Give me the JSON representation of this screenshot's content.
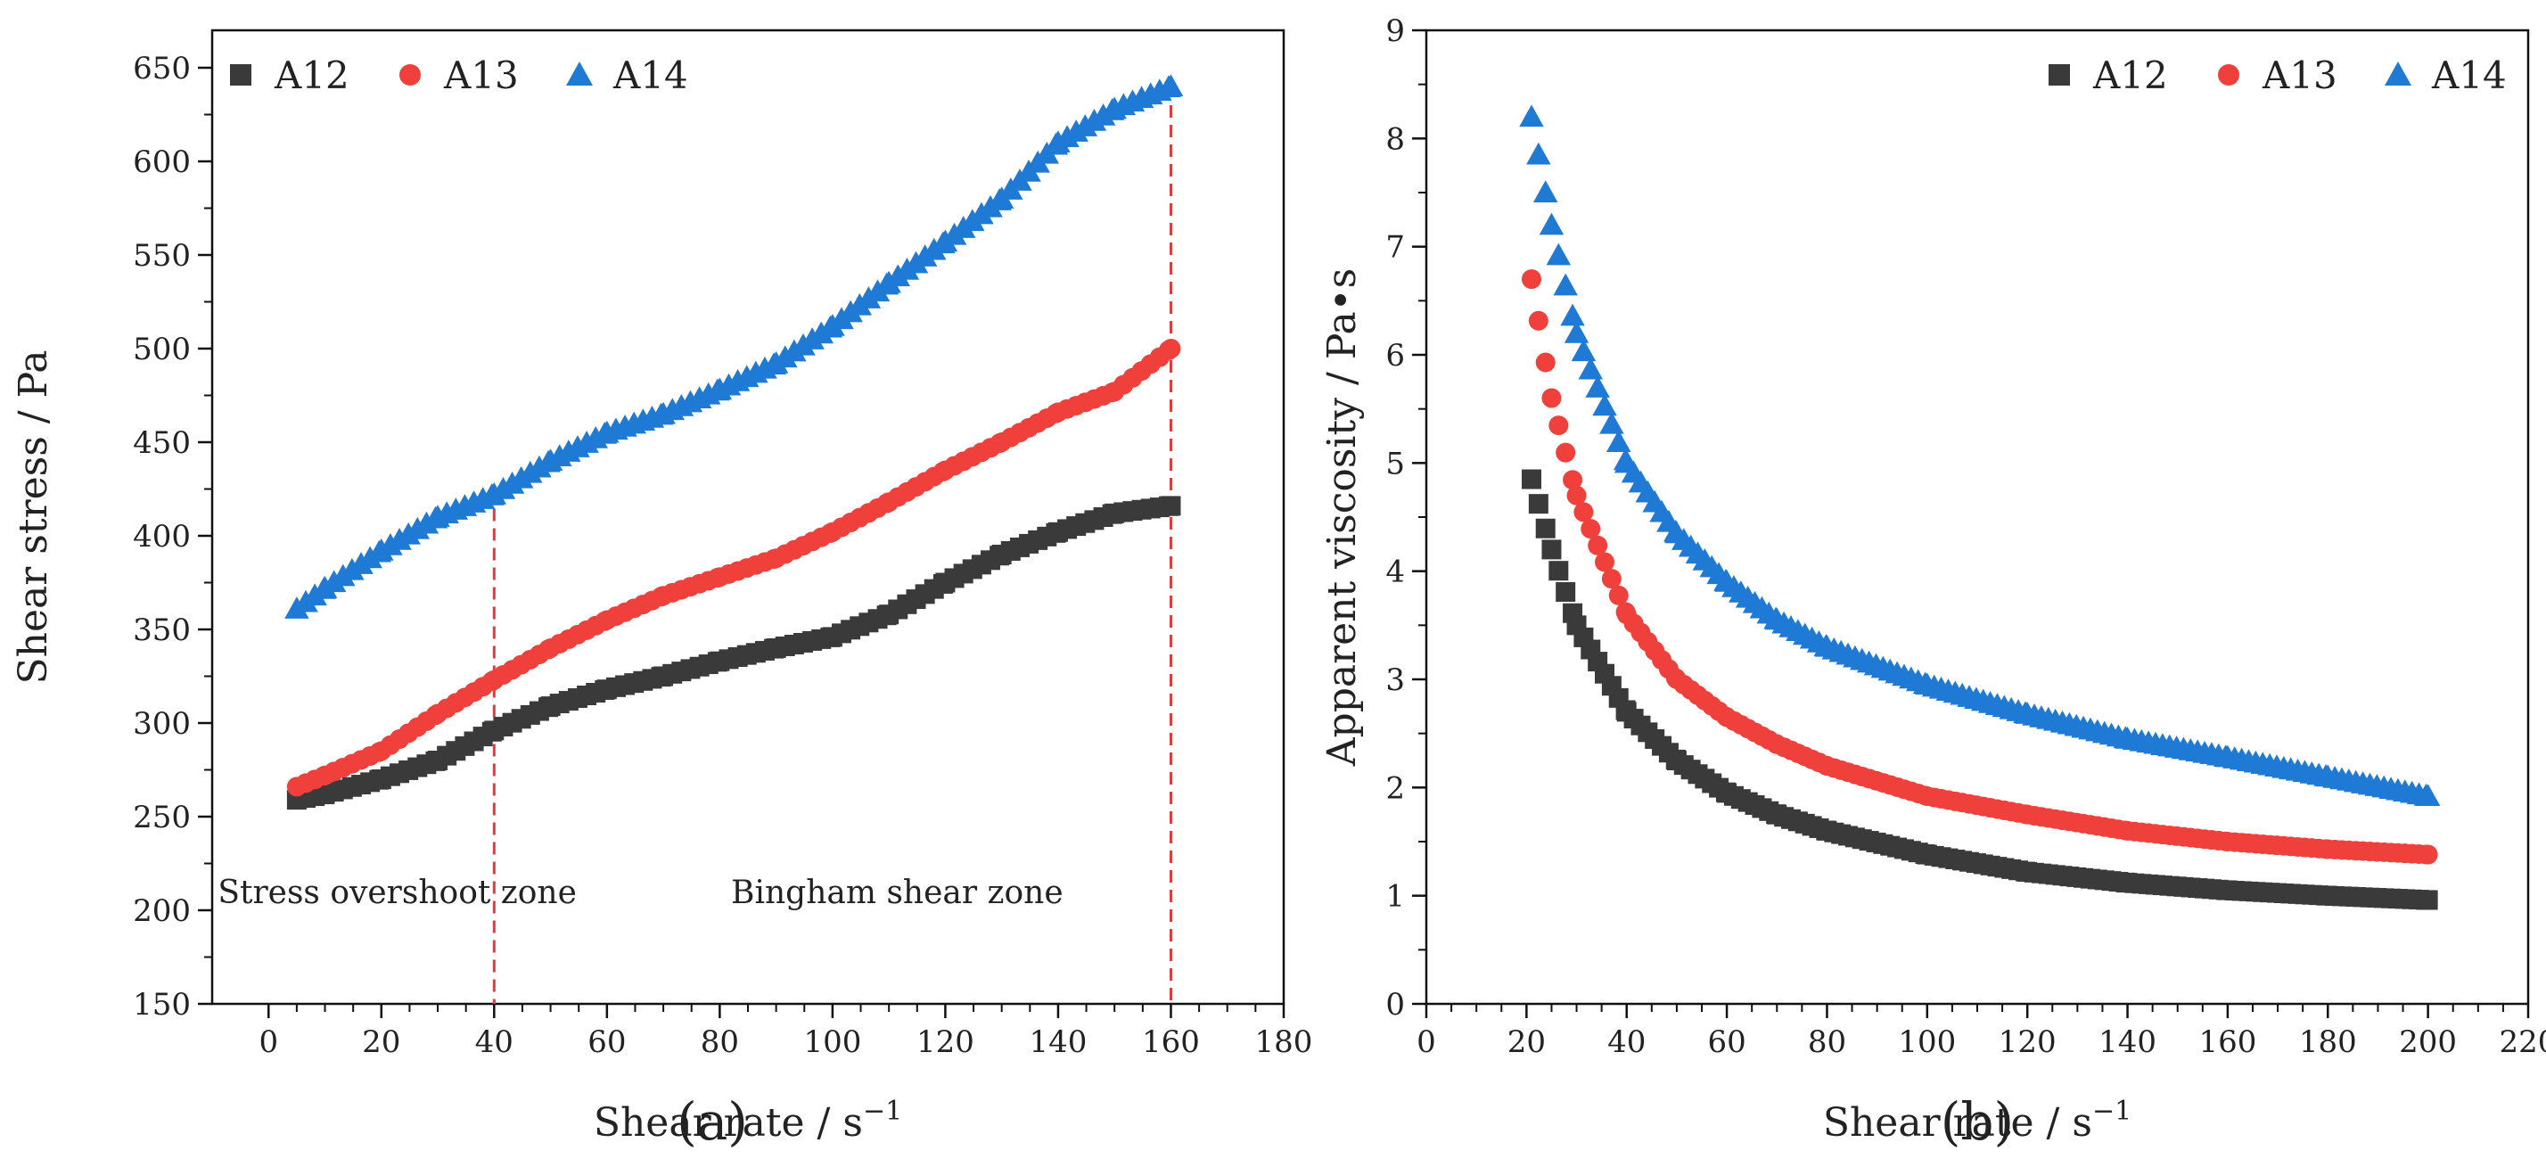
{
  "chart_data": [
    {
      "type": "scatter",
      "panel_label": "(a)",
      "xlabel": "Shear rate / s",
      "xlabel_sup": "−1",
      "ylabel": "Shear stress / Pa",
      "xlim": [
        -10,
        180
      ],
      "ylim": [
        150,
        670
      ],
      "xticks": [
        0,
        20,
        40,
        60,
        80,
        100,
        120,
        140,
        160,
        180
      ],
      "yticks": [
        150,
        200,
        250,
        300,
        350,
        400,
        450,
        500,
        550,
        600,
        650
      ],
      "legend_position": "top-left",
      "series": [
        {
          "name": "A12",
          "marker": "square",
          "color": "#3a3a3a",
          "points": [
            [
              5,
              259
            ],
            [
              10,
              262
            ],
            [
              20,
              270
            ],
            [
              30,
              280
            ],
            [
              40,
              296
            ],
            [
              50,
              309
            ],
            [
              60,
              318
            ],
            [
              70,
              325
            ],
            [
              80,
              333
            ],
            [
              90,
              340
            ],
            [
              100,
              346
            ],
            [
              110,
              358
            ],
            [
              120,
              375
            ],
            [
              130,
              390
            ],
            [
              140,
              402
            ],
            [
              150,
              412
            ],
            [
              160,
              416
            ]
          ]
        },
        {
          "name": "A13",
          "marker": "circle",
          "color": "#f0403c",
          "points": [
            [
              5,
              266
            ],
            [
              10,
              272
            ],
            [
              20,
              285
            ],
            [
              30,
              305
            ],
            [
              40,
              323
            ],
            [
              50,
              340
            ],
            [
              60,
              355
            ],
            [
              70,
              368
            ],
            [
              80,
              378
            ],
            [
              90,
              388
            ],
            [
              100,
              402
            ],
            [
              110,
              418
            ],
            [
              120,
              435
            ],
            [
              130,
              450
            ],
            [
              140,
              466
            ],
            [
              150,
              477
            ],
            [
              160,
              500
            ]
          ]
        },
        {
          "name": "A14",
          "marker": "triangle",
          "color": "#1f7ad6",
          "points": [
            [
              5,
              361
            ],
            [
              10,
              372
            ],
            [
              20,
              392
            ],
            [
              30,
              410
            ],
            [
              40,
              422
            ],
            [
              50,
              440
            ],
            [
              60,
              455
            ],
            [
              70,
              465
            ],
            [
              80,
              478
            ],
            [
              90,
              492
            ],
            [
              100,
              512
            ],
            [
              110,
              535
            ],
            [
              120,
              557
            ],
            [
              130,
              580
            ],
            [
              140,
              610
            ],
            [
              150,
              628
            ],
            [
              160,
              640
            ]
          ]
        }
      ],
      "vlines": [
        40,
        160
      ],
      "annotations": [
        "Stress overshoot zone",
        "Bingham shear zone"
      ]
    },
    {
      "type": "scatter",
      "panel_label": "(b)",
      "xlabel": "Shear rate / s",
      "xlabel_sup": "−1",
      "ylabel": "Apparent viscosity / Pa•s",
      "xlim": [
        0,
        220
      ],
      "ylim": [
        0,
        9
      ],
      "xticks": [
        0,
        20,
        40,
        60,
        80,
        100,
        120,
        140,
        160,
        180,
        200,
        220
      ],
      "yticks": [
        0,
        1,
        2,
        3,
        4,
        5,
        6,
        7,
        8,
        9
      ],
      "legend_position": "top-right",
      "series": [
        {
          "name": "A12",
          "marker": "square",
          "color": "#3a3a3a",
          "points": [
            [
              21,
              4.85
            ],
            [
              25,
              4.2
            ],
            [
              30,
              3.5
            ],
            [
              40,
              2.7
            ],
            [
              50,
              2.25
            ],
            [
              60,
              1.95
            ],
            [
              70,
              1.75
            ],
            [
              80,
              1.6
            ],
            [
              100,
              1.38
            ],
            [
              120,
              1.22
            ],
            [
              140,
              1.12
            ],
            [
              160,
              1.05
            ],
            [
              180,
              1.0
            ],
            [
              200,
              0.96
            ]
          ]
        },
        {
          "name": "A13",
          "marker": "circle",
          "color": "#f0403c",
          "points": [
            [
              21,
              6.7
            ],
            [
              25,
              5.6
            ],
            [
              30,
              4.7
            ],
            [
              40,
              3.6
            ],
            [
              50,
              3.0
            ],
            [
              60,
              2.65
            ],
            [
              70,
              2.4
            ],
            [
              80,
              2.2
            ],
            [
              100,
              1.92
            ],
            [
              120,
              1.75
            ],
            [
              140,
              1.6
            ],
            [
              160,
              1.5
            ],
            [
              180,
              1.43
            ],
            [
              200,
              1.38
            ]
          ]
        },
        {
          "name": "A14",
          "marker": "triangle",
          "color": "#1f7ad6",
          "points": [
            [
              21,
              8.2
            ],
            [
              25,
              7.2
            ],
            [
              30,
              6.2
            ],
            [
              40,
              5.0
            ],
            [
              50,
              4.35
            ],
            [
              60,
              3.9
            ],
            [
              70,
              3.55
            ],
            [
              80,
              3.3
            ],
            [
              100,
              2.95
            ],
            [
              120,
              2.68
            ],
            [
              140,
              2.45
            ],
            [
              160,
              2.28
            ],
            [
              180,
              2.1
            ],
            [
              200,
              1.92
            ]
          ]
        }
      ]
    }
  ]
}
